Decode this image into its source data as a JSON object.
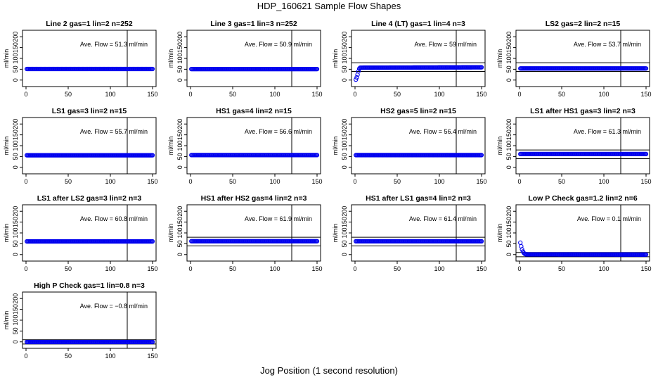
{
  "figure": {
    "title": "HDP_160621  Sample Flow Shapes",
    "x_axis_title": "Jog Position (1 second resolution)"
  },
  "chart_data": [
    {
      "type": "scatter",
      "title": "Line 2 gas=1 lin=2 n=252",
      "ylabel": "ml/min",
      "annotation": "Ave. Flow =  51.3  ml/min",
      "xlim": [
        0,
        150
      ],
      "ylim": [
        -30,
        230
      ],
      "x_ticks": [
        0,
        50,
        100,
        150
      ],
      "y_ticks": [
        0,
        50,
        100,
        150,
        200
      ],
      "vertical_line_x": 120,
      "reference_lines_y": [],
      "series": [
        {
          "points_x": [
            1,
            150
          ],
          "points_y": [
            51.3,
            51.3
          ],
          "point_count": 150
        }
      ]
    },
    {
      "type": "scatter",
      "title": "Line 3 gas=1 lin=3 n=252",
      "ylabel": "ml/min",
      "annotation": "Ave. Flow =  50.9  ml/min",
      "xlim": [
        0,
        150
      ],
      "ylim": [
        -30,
        230
      ],
      "x_ticks": [
        0,
        50,
        100,
        150
      ],
      "y_ticks": [
        0,
        50,
        100,
        150,
        200
      ],
      "vertical_line_x": 120,
      "reference_lines_y": [],
      "series": [
        {
          "points_x": [
            1,
            150
          ],
          "points_y": [
            50.9,
            50.9
          ],
          "point_count": 150
        }
      ]
    },
    {
      "type": "scatter",
      "title": "Line 4 (LT) gas=1 lin=4 n=3",
      "ylabel": "ml/min",
      "annotation": "Ave. Flow =  59  ml/min",
      "xlim": [
        0,
        150
      ],
      "ylim": [
        -30,
        230
      ],
      "x_ticks": [
        0,
        50,
        100,
        150
      ],
      "y_ticks": [
        0,
        50,
        100,
        150,
        200
      ],
      "vertical_line_x": 120,
      "reference_lines_y": [
        40,
        80
      ],
      "series": [
        {
          "points_x": [
            1,
            2,
            3,
            4,
            5,
            6,
            150
          ],
          "points_y": [
            2,
            12,
            25,
            40,
            52,
            57,
            59
          ],
          "point_count": 150
        }
      ]
    },
    {
      "type": "scatter",
      "title": "LS2 gas=2 lin=2 n=15",
      "ylabel": "ml/min",
      "annotation": "Ave. Flow =  53.7  ml/min",
      "xlim": [
        0,
        150
      ],
      "ylim": [
        -30,
        230
      ],
      "x_ticks": [
        0,
        50,
        100,
        150
      ],
      "y_ticks": [
        0,
        50,
        100,
        150,
        200
      ],
      "vertical_line_x": 120,
      "reference_lines_y": [
        40,
        80
      ],
      "series": [
        {
          "points_x": [
            1,
            150
          ],
          "points_y": [
            53.7,
            53.7
          ],
          "point_count": 150
        }
      ]
    },
    {
      "type": "scatter",
      "title": "LS1 gas=3 lin=2 n=15",
      "ylabel": "ml/min",
      "annotation": "Ave. Flow =  55.7  ml/min",
      "xlim": [
        0,
        150
      ],
      "ylim": [
        -30,
        230
      ],
      "x_ticks": [
        0,
        50,
        100,
        150
      ],
      "y_ticks": [
        0,
        50,
        100,
        150,
        200
      ],
      "vertical_line_x": 120,
      "reference_lines_y": [],
      "series": [
        {
          "points_x": [
            1,
            150
          ],
          "points_y": [
            55.7,
            55.7
          ],
          "point_count": 150
        }
      ]
    },
    {
      "type": "scatter",
      "title": "HS1 gas=4 lin=2 n=15",
      "ylabel": "ml/min",
      "annotation": "Ave. Flow =  56.6  ml/min",
      "xlim": [
        0,
        150
      ],
      "ylim": [
        -30,
        230
      ],
      "x_ticks": [
        0,
        50,
        100,
        150
      ],
      "y_ticks": [
        0,
        50,
        100,
        150,
        200
      ],
      "vertical_line_x": 120,
      "reference_lines_y": [],
      "series": [
        {
          "points_x": [
            1,
            150
          ],
          "points_y": [
            56.6,
            56.6
          ],
          "point_count": 150
        }
      ]
    },
    {
      "type": "scatter",
      "title": "HS2 gas=5 lin=2 n=15",
      "ylabel": "ml/min",
      "annotation": "Ave. Flow =  56.4  ml/min",
      "xlim": [
        0,
        150
      ],
      "ylim": [
        -30,
        230
      ],
      "x_ticks": [
        0,
        50,
        100,
        150
      ],
      "y_ticks": [
        0,
        50,
        100,
        150,
        200
      ],
      "vertical_line_x": 120,
      "reference_lines_y": [],
      "series": [
        {
          "points_x": [
            1,
            150
          ],
          "points_y": [
            56.4,
            56.4
          ],
          "point_count": 150
        }
      ]
    },
    {
      "type": "scatter",
      "title": "LS1 after HS1 gas=3 lin=2 n=3",
      "ylabel": "ml/min",
      "annotation": "Ave. Flow =  61.3  ml/min",
      "xlim": [
        0,
        150
      ],
      "ylim": [
        -30,
        230
      ],
      "x_ticks": [
        0,
        50,
        100,
        150
      ],
      "y_ticks": [
        0,
        50,
        100,
        150,
        200
      ],
      "vertical_line_x": 120,
      "reference_lines_y": [
        40,
        80
      ],
      "series": [
        {
          "points_x": [
            1,
            150
          ],
          "points_y": [
            61.3,
            61.3
          ],
          "point_count": 150
        }
      ]
    },
    {
      "type": "scatter",
      "title": "LS1 after LS2 gas=3 lin=2 n=3",
      "ylabel": "ml/min",
      "annotation": "Ave. Flow =  60.8  ml/min",
      "xlim": [
        0,
        150
      ],
      "ylim": [
        -30,
        230
      ],
      "x_ticks": [
        0,
        50,
        100,
        150
      ],
      "y_ticks": [
        0,
        50,
        100,
        150,
        200
      ],
      "vertical_line_x": 120,
      "reference_lines_y": [],
      "series": [
        {
          "points_x": [
            1,
            150
          ],
          "points_y": [
            60.8,
            60.8
          ],
          "point_count": 150
        }
      ]
    },
    {
      "type": "scatter",
      "title": "HS1 after HS2 gas=4 lin=2 n=3",
      "ylabel": "ml/min",
      "annotation": "Ave. Flow =  61.9  ml/min",
      "xlim": [
        0,
        150
      ],
      "ylim": [
        -30,
        230
      ],
      "x_ticks": [
        0,
        50,
        100,
        150
      ],
      "y_ticks": [
        0,
        50,
        100,
        150,
        200
      ],
      "vertical_line_x": 120,
      "reference_lines_y": [
        40,
        80
      ],
      "series": [
        {
          "points_x": [
            1,
            150
          ],
          "points_y": [
            61.9,
            61.9
          ],
          "point_count": 150
        }
      ]
    },
    {
      "type": "scatter",
      "title": "HS1 after LS1 gas=4 lin=2 n=3",
      "ylabel": "ml/min",
      "annotation": "Ave. Flow =  61.4  ml/min",
      "xlim": [
        0,
        150
      ],
      "ylim": [
        -30,
        230
      ],
      "x_ticks": [
        0,
        50,
        100,
        150
      ],
      "y_ticks": [
        0,
        50,
        100,
        150,
        200
      ],
      "vertical_line_x": 120,
      "reference_lines_y": [
        40,
        80
      ],
      "series": [
        {
          "points_x": [
            1,
            150
          ],
          "points_y": [
            61.4,
            61.4
          ],
          "point_count": 150
        }
      ]
    },
    {
      "type": "scatter",
      "title": "Low P Check gas=1.2 lin=2 n=6",
      "ylabel": "ml/min",
      "annotation": "Ave. Flow =  0.1  ml/min",
      "xlim": [
        0,
        150
      ],
      "ylim": [
        -30,
        230
      ],
      "x_ticks": [
        0,
        50,
        100,
        150
      ],
      "y_ticks": [
        0,
        50,
        100,
        150,
        200
      ],
      "vertical_line_x": 120,
      "reference_lines_y": [
        -10,
        10
      ],
      "series": [
        {
          "points_x": [
            1,
            2,
            3,
            4,
            5,
            6,
            7,
            8,
            150
          ],
          "points_y": [
            55,
            38,
            24,
            14,
            8,
            4,
            2,
            1,
            0.1
          ],
          "point_count": 150
        }
      ]
    },
    {
      "type": "scatter",
      "title": "High P Check gas=1 lin=0.8 n=3",
      "ylabel": "ml/min",
      "annotation": "Ave. Flow =  −0.8  ml/min",
      "xlim": [
        0,
        150
      ],
      "ylim": [
        -30,
        230
      ],
      "x_ticks": [
        0,
        50,
        100,
        150
      ],
      "y_ticks": [
        0,
        50,
        100,
        150,
        200
      ],
      "vertical_line_x": 120,
      "reference_lines_y": [
        -10,
        10
      ],
      "series": [
        {
          "points_x": [
            1,
            150
          ],
          "points_y": [
            -0.8,
            -0.8
          ],
          "point_count": 150
        }
      ]
    }
  ]
}
